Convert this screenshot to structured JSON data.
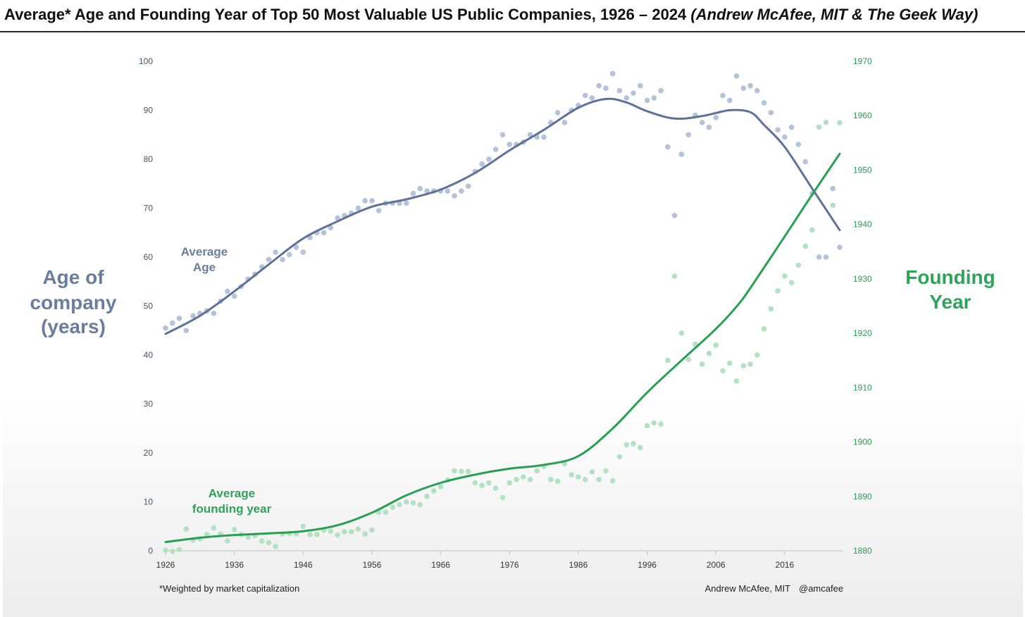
{
  "title": {
    "main": "Average* Age and Founding Year of Top 50 Most Valuable US Public Companies, 1926 – 2024",
    "attribution": "(Andrew McAfee, MIT & The Geek Way)"
  },
  "chart_data": {
    "type": "scatter",
    "x_ticks": [
      "1926",
      "1936",
      "1946",
      "1956",
      "1966",
      "1976",
      "1986",
      "1996",
      "2006",
      "2016"
    ],
    "xlim": [
      1926,
      2024
    ],
    "left_axis": {
      "label": [
        "Age of",
        "company",
        "(years)"
      ],
      "ticks": [
        "0",
        "10",
        "20",
        "30",
        "40",
        "50",
        "60",
        "70",
        "80",
        "90",
        "100"
      ],
      "ylim": [
        0,
        100
      ]
    },
    "right_axis": {
      "label": [
        "Founding",
        "Year"
      ],
      "ticks": [
        "1880",
        "1890",
        "1900",
        "1910",
        "1920",
        "1930",
        "1940",
        "1950",
        "1960",
        "1970"
      ],
      "ylim": [
        1880,
        1970
      ]
    },
    "series": [
      {
        "name": "Average Age",
        "label_lines": [
          "Average",
          "Age"
        ],
        "axis": "left",
        "color": "#5d7199",
        "point_color": "#b4c3d9",
        "points": [
          [
            1926,
            45.5
          ],
          [
            1927,
            46.5
          ],
          [
            1928,
            47.5
          ],
          [
            1929,
            45
          ],
          [
            1930,
            48
          ],
          [
            1931,
            48.5
          ],
          [
            1932,
            49
          ],
          [
            1933,
            48.5
          ],
          [
            1934,
            51
          ],
          [
            1935,
            53
          ],
          [
            1936,
            52
          ],
          [
            1937,
            54
          ],
          [
            1938,
            55.5
          ],
          [
            1939,
            56.5
          ],
          [
            1940,
            58
          ],
          [
            1941,
            59.5
          ],
          [
            1942,
            61
          ],
          [
            1943,
            59.5
          ],
          [
            1944,
            60.5
          ],
          [
            1945,
            62
          ],
          [
            1946,
            61
          ],
          [
            1947,
            64
          ],
          [
            1948,
            65
          ],
          [
            1949,
            65
          ],
          [
            1950,
            66
          ],
          [
            1951,
            68
          ],
          [
            1952,
            68.5
          ],
          [
            1953,
            69
          ],
          [
            1954,
            70
          ],
          [
            1955,
            71.5
          ],
          [
            1956,
            71.5
          ],
          [
            1957,
            69.5
          ],
          [
            1958,
            71
          ],
          [
            1959,
            71
          ],
          [
            1960,
            71
          ],
          [
            1961,
            71
          ],
          [
            1962,
            73
          ],
          [
            1963,
            74
          ],
          [
            1964,
            73.5
          ],
          [
            1965,
            73.5
          ],
          [
            1966,
            73.5
          ],
          [
            1967,
            73.5
          ],
          [
            1968,
            72.5
          ],
          [
            1969,
            73.5
          ],
          [
            1970,
            74.5
          ],
          [
            1971,
            77.5
          ],
          [
            1972,
            79
          ],
          [
            1973,
            80
          ],
          [
            1974,
            82
          ],
          [
            1975,
            85
          ],
          [
            1976,
            83
          ],
          [
            1977,
            83
          ],
          [
            1978,
            83.5
          ],
          [
            1979,
            85
          ],
          [
            1980,
            84.5
          ],
          [
            1981,
            84.5
          ],
          [
            1982,
            87.5
          ],
          [
            1983,
            89.5
          ],
          [
            1984,
            87.5
          ],
          [
            1985,
            90
          ],
          [
            1986,
            91
          ],
          [
            1987,
            93
          ],
          [
            1988,
            92.5
          ],
          [
            1989,
            95
          ],
          [
            1990,
            94.5
          ],
          [
            1991,
            97.5
          ],
          [
            1992,
            94
          ],
          [
            1993,
            92.5
          ],
          [
            1994,
            93.5
          ],
          [
            1995,
            95
          ],
          [
            1996,
            92
          ],
          [
            1997,
            92.5
          ],
          [
            1998,
            94
          ],
          [
            1999,
            82.5
          ],
          [
            2000,
            68.5
          ],
          [
            2001,
            81
          ],
          [
            2002,
            85
          ],
          [
            2003,
            89
          ],
          [
            2004,
            87.5
          ],
          [
            2005,
            86.5
          ],
          [
            2006,
            88.5
          ],
          [
            2007,
            93
          ],
          [
            2008,
            92
          ],
          [
            2009,
            97
          ],
          [
            2010,
            94.5
          ],
          [
            2011,
            95
          ],
          [
            2012,
            94
          ],
          [
            2013,
            91.5
          ],
          [
            2014,
            89.5
          ],
          [
            2015,
            86
          ],
          [
            2016,
            84.5
          ],
          [
            2017,
            86.5
          ],
          [
            2018,
            83
          ],
          [
            2019,
            79.5
          ],
          [
            2020,
            73
          ],
          [
            2021,
            60
          ],
          [
            2022,
            60
          ],
          [
            2023,
            74
          ],
          [
            2024,
            62
          ]
        ],
        "trend": [
          [
            1926,
            44.3
          ],
          [
            1931,
            48
          ],
          [
            1936,
            53
          ],
          [
            1941,
            58.5
          ],
          [
            1946,
            63.8
          ],
          [
            1951,
            67.3
          ],
          [
            1956,
            70.3
          ],
          [
            1961,
            71.8
          ],
          [
            1966,
            73.8
          ],
          [
            1971,
            77.2
          ],
          [
            1976,
            81.8
          ],
          [
            1981,
            86
          ],
          [
            1986,
            90.5
          ],
          [
            1990,
            92.3
          ],
          [
            1993,
            91.6
          ],
          [
            1996,
            89.8
          ],
          [
            2000,
            88.3
          ],
          [
            2004,
            88.8
          ],
          [
            2008,
            90
          ],
          [
            2011,
            89.6
          ],
          [
            2013,
            87
          ],
          [
            2016,
            82.5
          ],
          [
            2020,
            74
          ],
          [
            2024,
            65.5
          ]
        ]
      },
      {
        "name": "Average founding year",
        "label_lines": [
          "Average",
          "founding year"
        ],
        "axis": "right",
        "color": "#28a054",
        "point_color": "#b2e2c1",
        "points": [
          [
            1926,
            1880.1
          ],
          [
            1927,
            1879.9
          ],
          [
            1928,
            1880.2
          ],
          [
            1929,
            1884
          ],
          [
            1930,
            1882
          ],
          [
            1931,
            1882.2
          ],
          [
            1932,
            1883
          ],
          [
            1933,
            1884.2
          ],
          [
            1934,
            1883.1
          ],
          [
            1935,
            1881.8
          ],
          [
            1936,
            1883.9
          ],
          [
            1937,
            1883
          ],
          [
            1938,
            1882.5
          ],
          [
            1939,
            1882.8
          ],
          [
            1940,
            1881.8
          ],
          [
            1941,
            1881.5
          ],
          [
            1942,
            1880.8
          ],
          [
            1943,
            1883.1
          ],
          [
            1944,
            1883.2
          ],
          [
            1945,
            1883.1
          ],
          [
            1946,
            1884.5
          ],
          [
            1947,
            1883
          ],
          [
            1948,
            1883
          ],
          [
            1949,
            1883.8
          ],
          [
            1950,
            1883.6
          ],
          [
            1951,
            1882.9
          ],
          [
            1952,
            1883.5
          ],
          [
            1953,
            1883.5
          ],
          [
            1954,
            1884
          ],
          [
            1955,
            1883.1
          ],
          [
            1956,
            1883.8
          ],
          [
            1957,
            1887.1
          ],
          [
            1958,
            1887.1
          ],
          [
            1959,
            1888
          ],
          [
            1960,
            1888.5
          ],
          [
            1961,
            1889
          ],
          [
            1962,
            1888.8
          ],
          [
            1963,
            1888.5
          ],
          [
            1964,
            1890
          ],
          [
            1965,
            1891
          ],
          [
            1966,
            1891.8
          ],
          [
            1967,
            1893
          ],
          [
            1968,
            1894.7
          ],
          [
            1969,
            1894.6
          ],
          [
            1970,
            1894.6
          ],
          [
            1971,
            1892.5
          ],
          [
            1972,
            1892
          ],
          [
            1973,
            1892.5
          ],
          [
            1974,
            1891.5
          ],
          [
            1975,
            1889.8
          ],
          [
            1976,
            1892.5
          ],
          [
            1977,
            1893.1
          ],
          [
            1978,
            1893.6
          ],
          [
            1979,
            1893.1
          ],
          [
            1980,
            1894.7
          ],
          [
            1981,
            1895.5
          ],
          [
            1982,
            1893.1
          ],
          [
            1983,
            1892.8
          ],
          [
            1984,
            1896
          ],
          [
            1985,
            1894
          ],
          [
            1986,
            1893.6
          ],
          [
            1987,
            1893.1
          ],
          [
            1988,
            1894.5
          ],
          [
            1989,
            1893.1
          ],
          [
            1990,
            1894.7
          ],
          [
            1991,
            1892.9
          ],
          [
            1992,
            1897.3
          ],
          [
            1993,
            1899.5
          ],
          [
            1994,
            1899.7
          ],
          [
            1995,
            1899
          ],
          [
            1996,
            1903
          ],
          [
            1997,
            1903.5
          ],
          [
            1998,
            1903.3
          ],
          [
            1999,
            1915
          ],
          [
            2000,
            1930.5
          ],
          [
            2001,
            1920
          ],
          [
            2002,
            1915.2
          ],
          [
            2003,
            1918
          ],
          [
            2004,
            1914.3
          ],
          [
            2005,
            1916.3
          ],
          [
            2006,
            1917.8
          ],
          [
            2007,
            1913.1
          ],
          [
            2008,
            1914.5
          ],
          [
            2009,
            1911.2
          ],
          [
            2010,
            1914
          ],
          [
            2011,
            1914.3
          ],
          [
            2012,
            1916
          ],
          [
            2013,
            1920.8
          ],
          [
            2014,
            1924.5
          ],
          [
            2015,
            1927.8
          ],
          [
            2016,
            1930.5
          ],
          [
            2017,
            1929.3
          ],
          [
            2018,
            1932.5
          ],
          [
            2019,
            1936
          ],
          [
            2020,
            1939
          ],
          [
            2021,
            1957.9
          ],
          [
            2022,
            1958.8
          ],
          [
            2023,
            1943.5
          ],
          [
            2024,
            1958.7
          ]
        ],
        "trend": [
          [
            1926,
            1881.6
          ],
          [
            1931,
            1882.4
          ],
          [
            1936,
            1882.9
          ],
          [
            1941,
            1883.2
          ],
          [
            1946,
            1883.6
          ],
          [
            1951,
            1884.7
          ],
          [
            1956,
            1887
          ],
          [
            1961,
            1890.2
          ],
          [
            1966,
            1892.5
          ],
          [
            1971,
            1894
          ],
          [
            1976,
            1895.1
          ],
          [
            1981,
            1895.8
          ],
          [
            1986,
            1897.4
          ],
          [
            1991,
            1902.5
          ],
          [
            1996,
            1909.1
          ],
          [
            2001,
            1915
          ],
          [
            2006,
            1920.8
          ],
          [
            2009,
            1924.9
          ],
          [
            2011,
            1928.3
          ],
          [
            2016,
            1937.8
          ],
          [
            2020,
            1945.5
          ],
          [
            2024,
            1953
          ]
        ]
      }
    ]
  },
  "footnote": "*Weighted by market capitalization",
  "credit": "Andrew McAfee, MIT",
  "handle": "@amcafee"
}
